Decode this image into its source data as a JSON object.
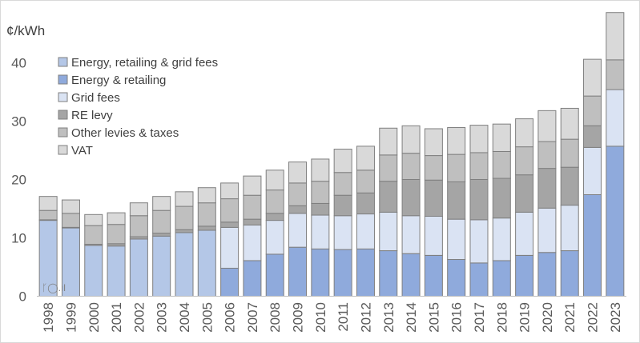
{
  "chart_data": {
    "type": "bar",
    "stacked": true,
    "title": "",
    "ylabel": "¢/kWh",
    "xlabel": "",
    "ylim": [
      0,
      47
    ],
    "yticks": [
      0,
      10,
      20,
      30,
      40
    ],
    "grid": false,
    "legend_position": "top-left",
    "categories": [
      "1998",
      "1999",
      "2000",
      "2001",
      "2002",
      "2003",
      "2004",
      "2005",
      "2006",
      "2007",
      "2008",
      "2009",
      "2010",
      "2011",
      "2012",
      "2013",
      "2014",
      "2015",
      "2016",
      "2017",
      "2018",
      "2019",
      "2020",
      "2021",
      "2022",
      "2023"
    ],
    "series": [
      {
        "name": "Energy, retailing & grid fees",
        "color": "#b4c7e7",
        "values": [
          13.0,
          11.7,
          8.7,
          8.6,
          9.8,
          10.3,
          10.9,
          11.3,
          0,
          0,
          0,
          0,
          0,
          0,
          0,
          0,
          0,
          0,
          0,
          0,
          0,
          0,
          0,
          0,
          0,
          0
        ]
      },
      {
        "name": "Energy & retailing",
        "color": "#8faadc",
        "values": [
          0,
          0,
          0,
          0,
          0,
          0,
          0,
          0,
          4.8,
          6.1,
          7.2,
          8.4,
          8.1,
          8.0,
          8.1,
          7.8,
          7.3,
          7.0,
          6.3,
          5.7,
          6.1,
          7.0,
          7.5,
          7.8,
          17.4,
          25.7
        ]
      },
      {
        "name": "Grid fees",
        "color": "#dae3f3",
        "values": [
          0,
          0,
          0,
          0,
          0,
          0,
          0,
          0,
          7.0,
          6.1,
          5.8,
          5.8,
          5.8,
          5.8,
          6.0,
          6.6,
          6.5,
          6.7,
          6.9,
          7.4,
          7.3,
          7.4,
          7.6,
          7.8,
          8.1,
          9.7
        ]
      },
      {
        "name": "RE levy",
        "color": "#a5a5a5",
        "values": [
          0.1,
          0.1,
          0.2,
          0.4,
          0.4,
          0.5,
          0.5,
          0.7,
          0.9,
          1.0,
          1.2,
          1.3,
          2.0,
          3.5,
          3.6,
          5.3,
          6.2,
          6.2,
          6.4,
          6.9,
          6.8,
          6.4,
          6.8,
          6.5,
          3.7,
          0
        ]
      },
      {
        "name": "Other levies & taxes",
        "color": "#bfbfbf",
        "values": [
          1.6,
          2.4,
          3.2,
          3.3,
          3.6,
          3.9,
          4.0,
          4.0,
          4.0,
          4.1,
          4.0,
          3.9,
          3.8,
          3.9,
          3.9,
          4.5,
          4.5,
          4.2,
          4.7,
          4.6,
          4.6,
          4.8,
          4.6,
          4.8,
          5.1,
          5.1
        ]
      },
      {
        "name": "VAT",
        "color": "#d9d9d9",
        "values": [
          2.4,
          2.3,
          1.9,
          2.0,
          2.2,
          2.4,
          2.5,
          2.6,
          2.7,
          3.3,
          3.4,
          3.6,
          3.8,
          4.0,
          4.1,
          4.6,
          4.7,
          4.6,
          4.6,
          4.7,
          4.7,
          4.8,
          5.3,
          5.3,
          6.3,
          8.1
        ]
      }
    ]
  },
  "watermark": "ᚴ◯.ıl"
}
